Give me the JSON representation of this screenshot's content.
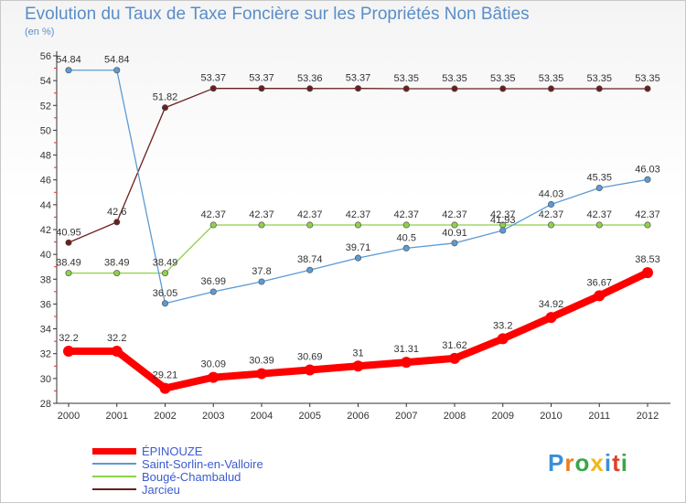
{
  "chart_data": {
    "type": "line",
    "title": "Evolution du Taux de Taxe Foncière sur les Propriétés Non Bâties",
    "ylabel": "(en %)",
    "xlabel": "",
    "categories": [
      "2000",
      "2001",
      "2002",
      "2003",
      "2004",
      "2005",
      "2006",
      "2007",
      "2008",
      "2009",
      "2010",
      "2011",
      "2012"
    ],
    "ylim": [
      28,
      56
    ],
    "yticks": [
      28,
      30,
      32,
      34,
      36,
      38,
      40,
      42,
      44,
      46,
      48,
      50,
      52,
      54,
      56
    ],
    "series": [
      {
        "name": "ÉPINOUZE",
        "color": "#ff0000",
        "values": [
          32.2,
          32.2,
          29.21,
          30.09,
          30.39,
          30.69,
          31,
          31.31,
          31.62,
          33.2,
          34.92,
          36.67,
          38.53
        ],
        "labels": [
          "32.2",
          "32.2",
          "29.21",
          "30.09",
          "30.39",
          "30.69",
          "31",
          "31.31",
          "31.62",
          "33.2",
          "34.92",
          "36.67",
          "38.53"
        ]
      },
      {
        "name": "Saint-Sorlin-en-Valloire",
        "color": "#5b9bd5",
        "values": [
          54.84,
          54.84,
          36.05,
          36.99,
          37.8,
          38.74,
          39.71,
          40.5,
          40.91,
          41.93,
          44.03,
          45.35,
          46.03
        ],
        "labels": [
          "54.84",
          "54.84",
          "36.05",
          "36.99",
          "37.8",
          "38.74",
          "39.71",
          "40.5",
          "40.91",
          "41.93",
          "44.03",
          "45.35",
          "46.03"
        ]
      },
      {
        "name": "Bougé-Chambalud",
        "color": "#8ed14a",
        "values": [
          38.49,
          38.49,
          38.49,
          42.37,
          42.37,
          42.37,
          42.37,
          42.37,
          42.37,
          42.37,
          42.37,
          42.37,
          42.37
        ],
        "labels": [
          "38.49",
          "38.49",
          "38.49",
          "42.37",
          "42.37",
          "42.37",
          "42.37",
          "42.37",
          "42.37",
          "42.37",
          "42.37",
          "42.37",
          "42.37"
        ]
      },
      {
        "name": "Jarcieu",
        "color": "#6b1e1e",
        "values": [
          40.95,
          42.6,
          51.82,
          53.37,
          53.37,
          53.36,
          53.37,
          53.35,
          53.35,
          53.35,
          53.35,
          53.35,
          53.35
        ],
        "labels": [
          "40.95",
          "42.6",
          "51.82",
          "53.37",
          "53.37",
          "53.36",
          "53.37",
          "53.35",
          "53.35",
          "53.35",
          "53.35",
          "53.35",
          "53.35"
        ]
      }
    ],
    "grid": false,
    "legend": "bottom-left"
  },
  "brand": {
    "letters": [
      "P",
      "r",
      "o",
      "x",
      "i",
      "t",
      "i"
    ],
    "colors": [
      "#3a8fd8",
      "#f07d1a",
      "#3aa64a",
      "#f0b81a",
      "#3a8fd8",
      "#e0402a",
      "#3aa64a"
    ]
  }
}
